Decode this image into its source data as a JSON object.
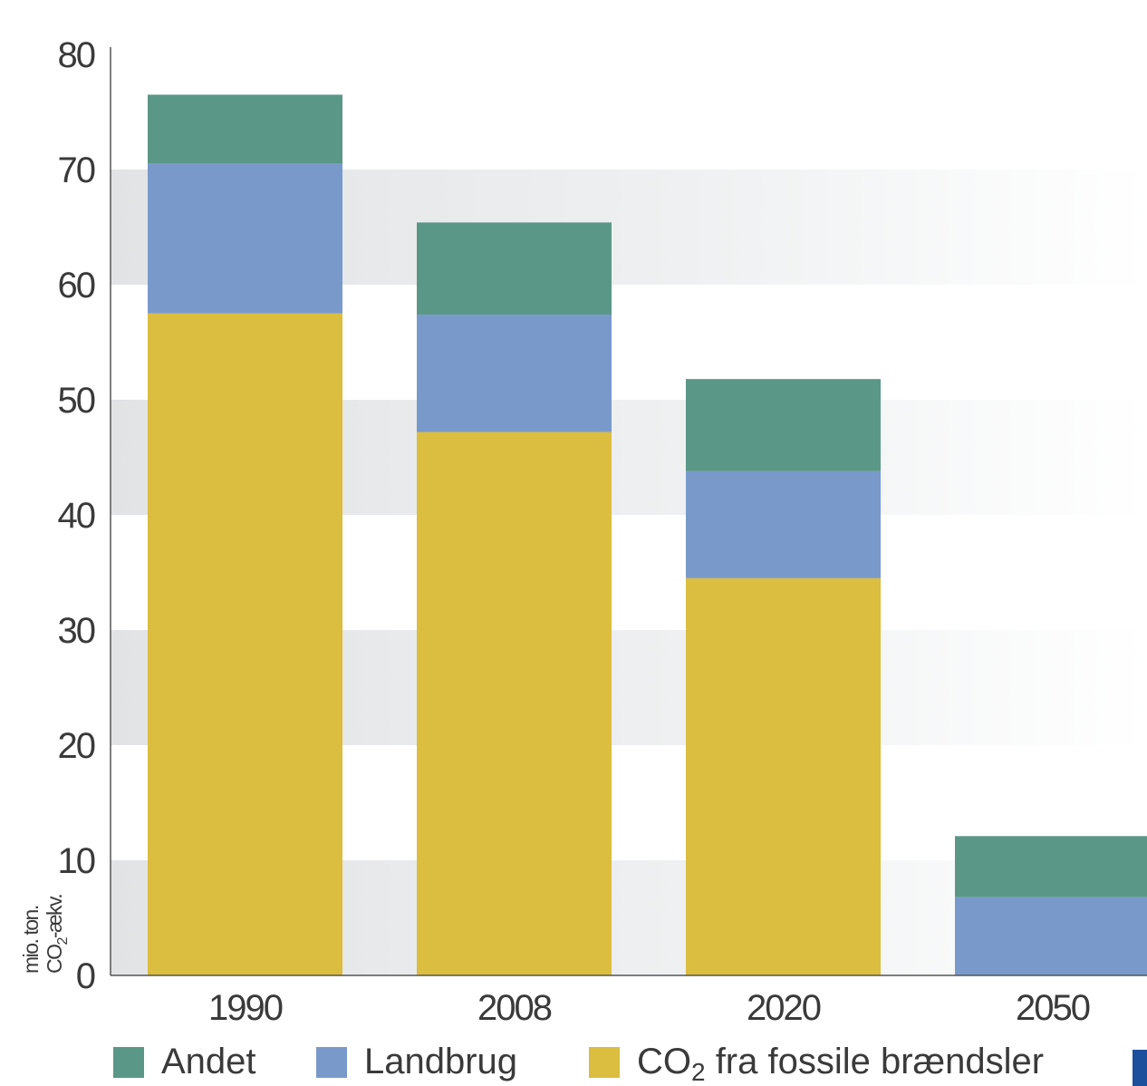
{
  "chart_data": {
    "type": "bar",
    "stacked": true,
    "categories": [
      "1990",
      "2008",
      "2020",
      "2050"
    ],
    "series": [
      {
        "name": "CO2 fra fossile brændsler",
        "values": [
          57.5,
          47.2,
          34.5,
          0
        ],
        "color": "#dbbd40"
      },
      {
        "name": "Landbrug",
        "values": [
          13.0,
          10.2,
          9.3,
          6.8
        ],
        "color": "#7a99cb"
      },
      {
        "name": "Andet",
        "values": [
          6.0,
          8.0,
          8.0,
          5.3
        ],
        "color": "#5a9787"
      }
    ],
    "legend": [
      {
        "name": "Andet",
        "color": "#5a9787"
      },
      {
        "name": "Landbrug",
        "color": "#7a99cb"
      },
      {
        "name": "CO₂ fra fossile brændsler",
        "color": "#dbbd40",
        "prefix": "CO",
        "sub": "2",
        "suffix": " fra fossile brændsler"
      }
    ],
    "ylabel_lines": [
      "mio. ton.",
      "CO₂-ækv."
    ],
    "ylabel": {
      "line1": "mio. ton.",
      "line2_prefix": "CO",
      "line2_sub": "2",
      "line2_suffix": "-ækv."
    },
    "ylim": [
      0,
      80
    ],
    "yticks": [
      0,
      10,
      20,
      30,
      40,
      50,
      60,
      70,
      80
    ],
    "grid": "alternating shaded bands",
    "legend_position": "bottom"
  }
}
